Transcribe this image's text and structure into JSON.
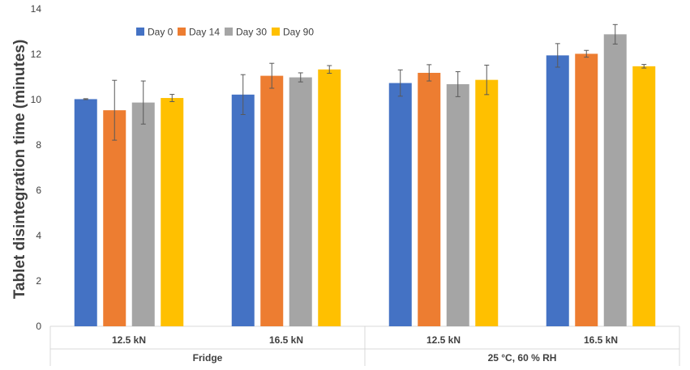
{
  "chart_data": {
    "type": "bar",
    "ylabel": "Tablet disintegration time (minutes)",
    "xlabel": "",
    "ylim": [
      0,
      14
    ],
    "yticks": [
      0,
      2,
      4,
      6,
      8,
      10,
      12,
      14
    ],
    "grid": false,
    "legend_position": "top-left",
    "categories": [
      "12.5 kN",
      "16.5 kN",
      "12.5 kN",
      "16.5 kN"
    ],
    "groups": [
      {
        "label": "Fridge",
        "categories": [
          "12.5 kN",
          "16.5 kN"
        ]
      },
      {
        "label": "25 °C, 60 % RH",
        "categories": [
          "12.5 kN",
          "16.5 kN"
        ]
      }
    ],
    "series": [
      {
        "name": "Day 0",
        "color": "#4472C4",
        "values": [
          10.02,
          10.22,
          10.73,
          11.95
        ],
        "errors": [
          0.02,
          0.88,
          0.58,
          0.52
        ]
      },
      {
        "name": "Day 14",
        "color": "#ED7D31",
        "values": [
          9.53,
          11.05,
          11.18,
          12.02
        ],
        "errors": [
          1.32,
          0.55,
          0.36,
          0.15
        ]
      },
      {
        "name": "Day 30",
        "color": "#A5A5A5",
        "values": [
          9.87,
          10.98,
          10.68,
          12.88
        ],
        "errors": [
          0.95,
          0.2,
          0.55,
          0.43
        ]
      },
      {
        "name": "Day 90",
        "color": "#FFC000",
        "values": [
          10.07,
          11.33,
          10.87,
          11.47
        ],
        "errors": [
          0.16,
          0.17,
          0.65,
          0.08
        ]
      }
    ]
  }
}
